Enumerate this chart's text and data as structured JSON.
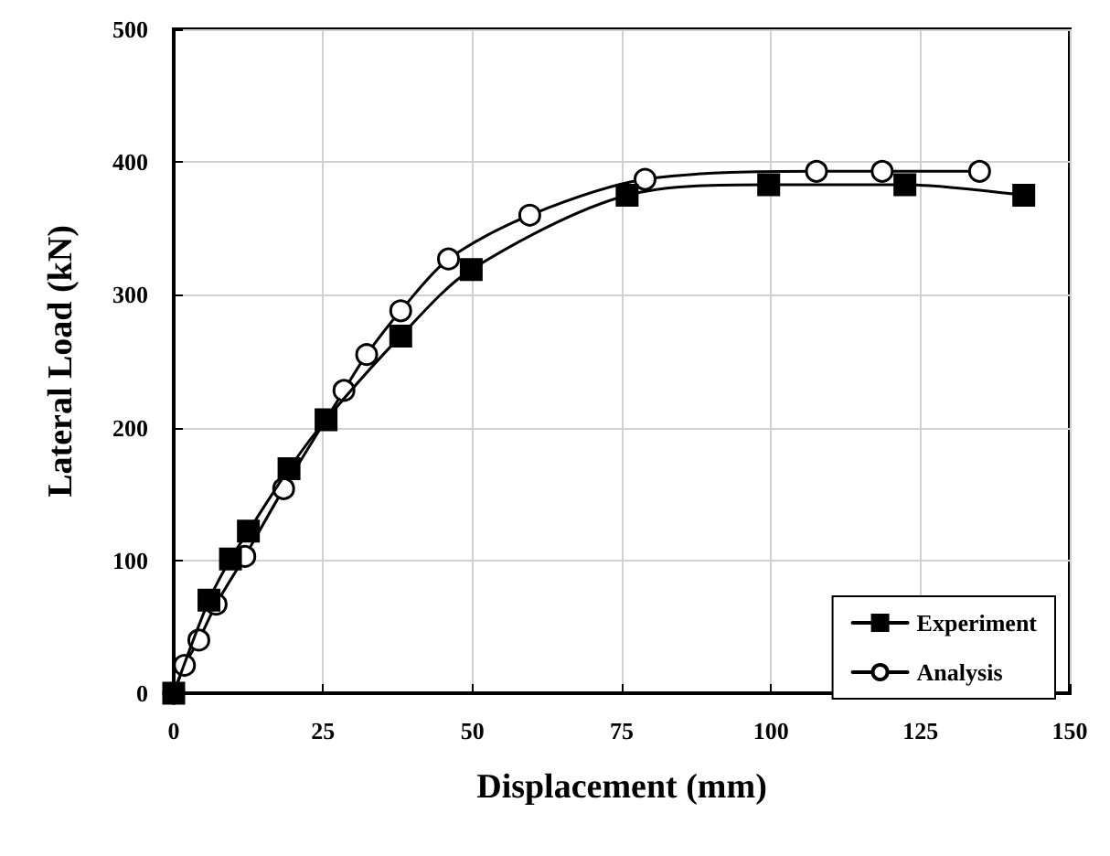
{
  "chart_data": {
    "type": "line",
    "xlabel": "Displacement (mm)",
    "ylabel": "Lateral Load (kN)",
    "xlim": [
      0,
      150
    ],
    "xticks": [
      0,
      25,
      50,
      75,
      100,
      125,
      150
    ],
    "ylim": [
      0,
      500
    ],
    "yticks": [
      0,
      100,
      200,
      300,
      400,
      500
    ],
    "grid": true,
    "legend": "bottom right",
    "line_style": "solid",
    "series": [
      {
        "name": "Experiment",
        "color": "#000000",
        "marker": "square",
        "x": [
          0,
          5.9,
          9.5,
          12.5,
          19.3,
          25.5,
          38,
          49.8,
          75.9,
          99.6,
          122.4,
          142.3
        ],
        "values": [
          0,
          70,
          101,
          122,
          169,
          206,
          269,
          319,
          375,
          383,
          383,
          375
        ]
      },
      {
        "name": "Analysis",
        "color": "#000000",
        "marker": "circle",
        "x": [
          0,
          1.8,
          4.2,
          7.1,
          11.9,
          18.4,
          28.5,
          32.3,
          38,
          46,
          59.6,
          78.9,
          107.6,
          118.6,
          134.9
        ],
        "values": [
          0,
          21,
          40,
          67,
          103,
          154,
          228,
          255,
          288,
          327,
          360,
          387,
          393,
          393,
          393
        ]
      }
    ]
  }
}
